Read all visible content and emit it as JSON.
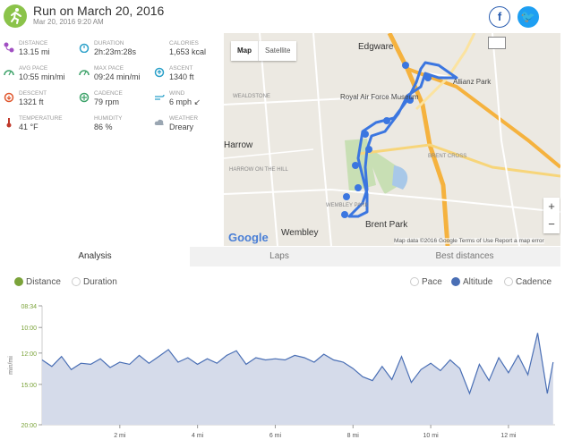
{
  "header": {
    "title": "Run on March 20, 2016",
    "subtitle": "Mar 20, 2016 9:20 AM",
    "facebook_label": "f",
    "twitter_label": "🐦"
  },
  "stats": [
    {
      "label": "DISTANCE",
      "value": "13.15 mi",
      "icon": "route-icon",
      "color": "#a14fc2"
    },
    {
      "label": "DURATION",
      "value": "2h:23m:28s",
      "icon": "stopwatch-icon",
      "color": "#2aa0c9"
    },
    {
      "label": "CALORIES",
      "value": "1,653 kcal",
      "icon": "flame-icon",
      "color": "#e0572e"
    },
    {
      "label": "AVG PACE",
      "value": "10:55 min/mi",
      "icon": "speedometer-icon",
      "color": "#3fa36b"
    },
    {
      "label": "MAX PACE",
      "value": "09:24 min/mi",
      "icon": "speedometer-icon",
      "color": "#3fa36b"
    },
    {
      "label": "ASCENT",
      "value": "1340 ft",
      "icon": "ascent-icon",
      "color": "#2aa0c9"
    },
    {
      "label": "DESCENT",
      "value": "1321 ft",
      "icon": "descent-icon",
      "color": "#e0572e"
    },
    {
      "label": "CADENCE",
      "value": "79 rpm",
      "icon": "cadence-icon",
      "color": "#3fa36b"
    },
    {
      "label": "WIND",
      "value": "6 mph ↙",
      "icon": "wind-icon",
      "color": "#2aa0c9"
    },
    {
      "label": "TEMPERATURE",
      "value": "41 °F",
      "icon": "thermometer-icon",
      "color": "#c0392b"
    },
    {
      "label": "HUMIDITY",
      "value": "86 %",
      "icon": "droplets-icon",
      "color": "#4a8fe0"
    },
    {
      "label": "WEATHER",
      "value": "Dreary",
      "icon": "cloud-icon",
      "color": "#9aa6b2"
    }
  ],
  "map": {
    "toggle_map": "Map",
    "toggle_satellite": "Satellite",
    "google": "Google",
    "footer": "Map data ©2016 Google   Terms of Use   Report a map error",
    "zoom_in": "+",
    "zoom_out": "−",
    "labels": {
      "edgware": "Edgware",
      "allianz": "Allianz Park",
      "raf": "Royal Air Force Museum",
      "harrow": "Harrow",
      "wembley": "Wembley",
      "brentpark": "Brent Park",
      "wealdstone": "WEALDSTONE",
      "harrowhill": "HARROW ON THE HILL",
      "brentcross": "BRENT CROSS",
      "wembleypark": "WEMBLEY PARK"
    }
  },
  "tabs": [
    "Analysis",
    "Laps",
    "Best distances"
  ],
  "chart_options": {
    "x_options": [
      {
        "label": "Distance",
        "checked": true
      },
      {
        "label": "Duration",
        "checked": false
      }
    ],
    "y_options": [
      {
        "label": "Pace",
        "checked": false
      },
      {
        "label": "Altitude",
        "checked": true
      },
      {
        "label": "Cadence",
        "checked": false
      }
    ]
  },
  "chart_data": {
    "type": "area",
    "ylabel": "min/mi",
    "y_ticks": [
      "08:34",
      "10:00",
      "12:00",
      "15:00",
      "20:00"
    ],
    "x_ticks": [
      "2 mi",
      "4 mi",
      "6 mi",
      "8 mi",
      "10 mi",
      "12 mi"
    ],
    "x": [
      0,
      0.25,
      0.5,
      0.75,
      1,
      1.25,
      1.5,
      1.75,
      2,
      2.25,
      2.5,
      2.75,
      3,
      3.25,
      3.5,
      3.75,
      4,
      4.25,
      4.5,
      4.75,
      5,
      5.25,
      5.5,
      5.75,
      6,
      6.25,
      6.5,
      6.75,
      7,
      7.25,
      7.5,
      7.75,
      8,
      8.25,
      8.5,
      8.75,
      9,
      9.25,
      9.5,
      9.75,
      10,
      10.25,
      10.5,
      10.75,
      11,
      11.25,
      11.5,
      11.75,
      12,
      12.25,
      12.5,
      12.75,
      13,
      13.15
    ],
    "y": [
      12.6,
      13.2,
      12.3,
      13.5,
      12.9,
      13.0,
      12.5,
      13.3,
      12.8,
      13.0,
      12.2,
      12.9,
      12.3,
      11.7,
      12.8,
      12.4,
      13.0,
      12.5,
      12.9,
      12.2,
      11.8,
      13.0,
      12.4,
      12.6,
      12.5,
      12.6,
      12.2,
      12.4,
      12.8,
      12.1,
      12.6,
      12.8,
      13.4,
      14.2,
      14.6,
      13.2,
      14.5,
      12.3,
      14.8,
      13.5,
      12.9,
      13.6,
      12.6,
      13.4,
      16.0,
      13.0,
      14.6,
      12.4,
      13.8,
      12.2,
      14.0,
      10.4,
      16.0,
      12.8
    ],
    "color": "#4a6fb5",
    "fill": "#d5dbea",
    "accent_green": "#7ba33a"
  }
}
